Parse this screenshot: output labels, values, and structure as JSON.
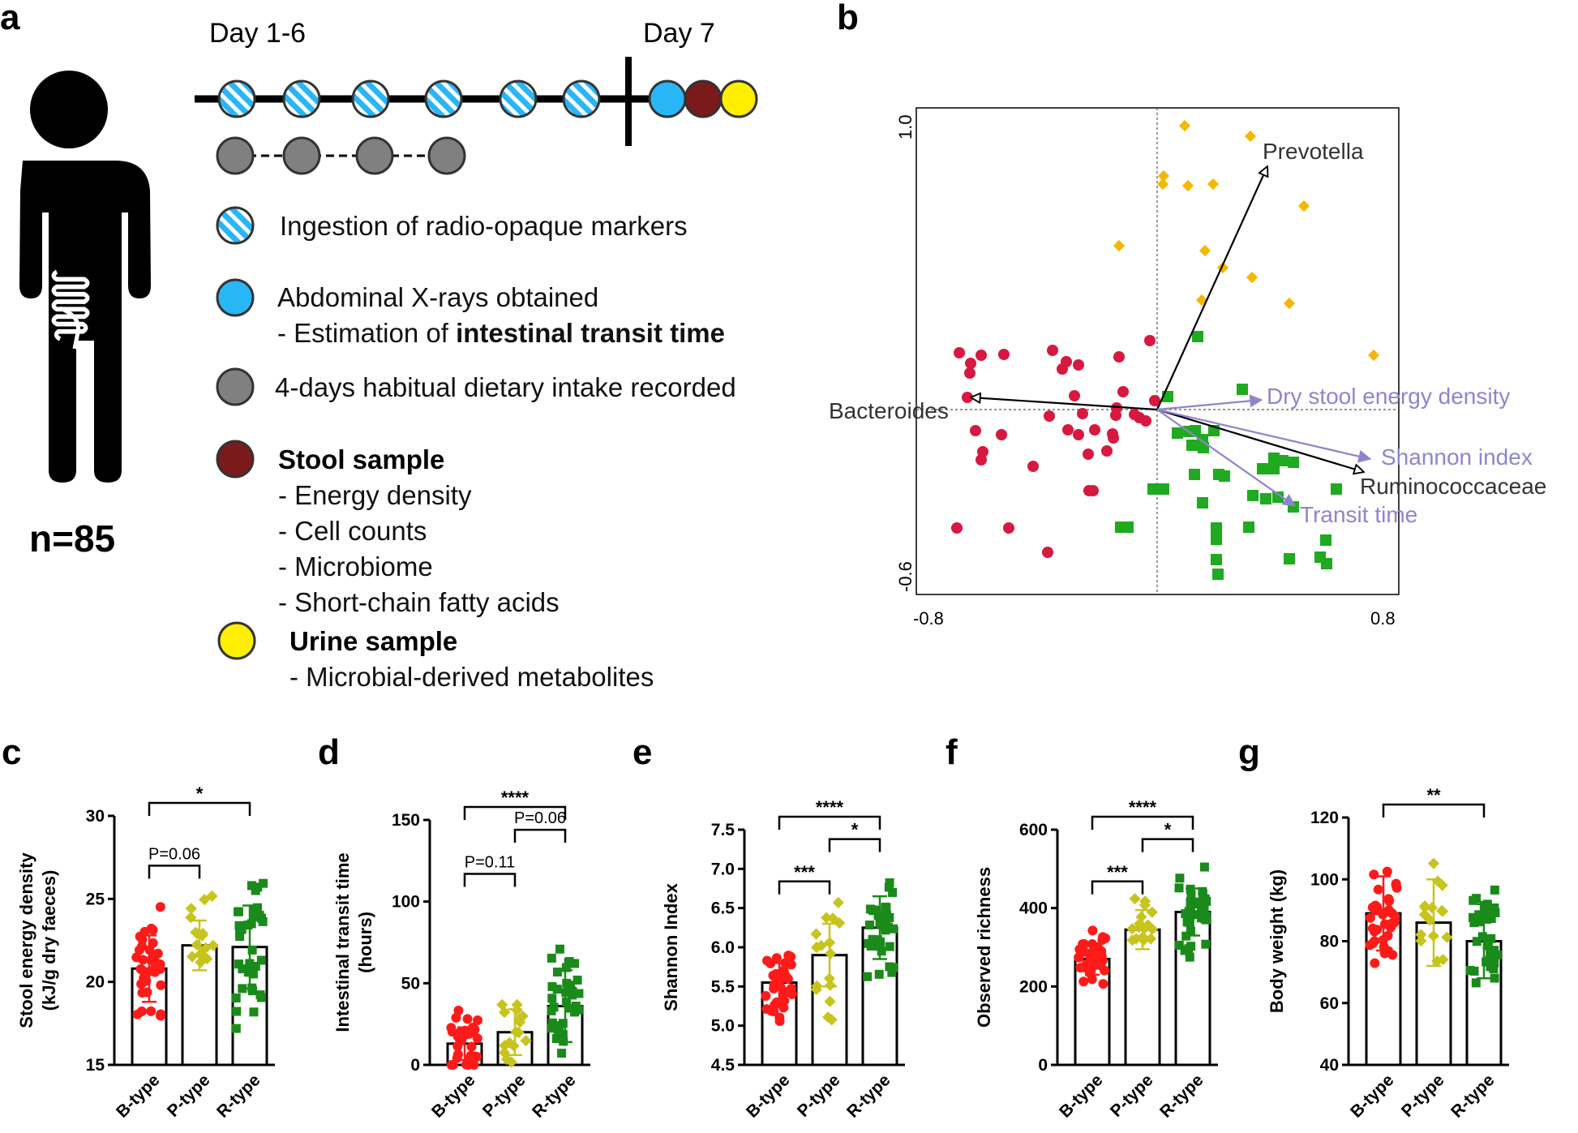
{
  "panel_a": {
    "label": "a",
    "day16": "Day 1-6",
    "day7": "Day 7",
    "n": "n=85",
    "legend": [
      {
        "marker": "hatched-blue",
        "text": "Ingestion of radio-opaque markers"
      },
      {
        "marker": "blue",
        "line1": "Abdominal X-rays obtained",
        "line2_prefix": "- Estimation of ",
        "line2_bold": "intestinal transit time"
      },
      {
        "marker": "gray",
        "text": "4-days habitual dietary intake recorded"
      },
      {
        "marker": "maroon",
        "title": "Stool sample",
        "items": [
          "- Energy density",
          "- Cell counts",
          "- Microbiome",
          "- Short-chain fatty acids"
        ]
      },
      {
        "marker": "yellow",
        "title": "Urine sample",
        "items": [
          "- Microbial-derived metabolites"
        ]
      }
    ],
    "colors": {
      "blue": "#29b6f6",
      "maroon": "#7b1a1a",
      "yellow": "#ffee00",
      "gray": "#808080"
    }
  },
  "panel_b": {
    "label": "b",
    "xticks": [
      "-0.8",
      "0.8"
    ],
    "yticks": [
      "1.0",
      "-0.6"
    ],
    "arrow_labels": {
      "prevotella": "Prevotella",
      "bacteroides": "Bacteroides",
      "ruminococcaceae": "Ruminococcaceae",
      "dry_stool": "Dry stool energy density",
      "shannon": "Shannon index",
      "transit": "Transit time"
    },
    "colors": {
      "b_type": "#d7193f",
      "p_type": "#f5b800",
      "r_type": "#1faa1f",
      "env_arrow": "#8c86cc",
      "taxa_arrow": "#000000"
    }
  },
  "bar_panels": [
    {
      "label": "c",
      "ylabel1": "Stool energy density",
      "ylabel2": "(kJ/g dry faeces)",
      "ymin": 15,
      "ymax": 30,
      "ticks": [
        "15",
        "20",
        "25",
        "30"
      ],
      "categories": [
        "B-type",
        "P-type",
        "R-type"
      ],
      "means": [
        20.8,
        22.2,
        22.1
      ],
      "sds": [
        2.0,
        1.5,
        2.5
      ],
      "brackets": [
        {
          "from": 0,
          "to": 2,
          "level": 1,
          "text": "*"
        },
        {
          "from": 0,
          "to": 1,
          "level": 0,
          "text": "P=0.06"
        }
      ]
    },
    {
      "label": "d",
      "ylabel1": "Intestinal transit time",
      "ylabel2": "(hours)",
      "ymin": 0,
      "ymax": 150,
      "ticks": [
        "0",
        "50",
        "100",
        "150"
      ],
      "categories": [
        "B-type",
        "P-type",
        "R-type"
      ],
      "means": [
        13,
        20,
        36
      ],
      "sds": [
        10,
        14,
        22
      ],
      "brackets": [
        {
          "from": 0,
          "to": 2,
          "level": 1,
          "text": "****"
        },
        {
          "from": 0,
          "to": 1,
          "level": 0,
          "text": "P=0.11"
        },
        {
          "from": 1,
          "to": 2,
          "level": 0.5,
          "text": "P=0.06"
        }
      ]
    },
    {
      "label": "e",
      "ylabel1": "Shannon Index",
      "ylabel2": "",
      "ymin": 4.5,
      "ymax": 7.5,
      "ticks": [
        "4.5",
        "5.0",
        "5.5",
        "6.0",
        "6.5",
        "7.0",
        "7.5"
      ],
      "categories": [
        "B-type",
        "P-type",
        "R-type"
      ],
      "means": [
        5.55,
        5.9,
        6.25
      ],
      "sds": [
        0.25,
        0.4,
        0.4
      ],
      "brackets": [
        {
          "from": 0,
          "to": 2,
          "level": 1,
          "text": "****"
        },
        {
          "from": 0,
          "to": 1,
          "level": 0,
          "text": "***"
        },
        {
          "from": 1,
          "to": 2,
          "level": 0.5,
          "text": "*"
        }
      ]
    },
    {
      "label": "f",
      "ylabel1": "Observed richness",
      "ylabel2": "",
      "ymin": 0,
      "ymax": 600,
      "ticks": [
        "0",
        "200",
        "400",
        "600"
      ],
      "categories": [
        "B-type",
        "P-type",
        "R-type"
      ],
      "means": [
        270,
        345,
        390
      ],
      "sds": [
        40,
        50,
        60
      ],
      "brackets": [
        {
          "from": 0,
          "to": 2,
          "level": 1,
          "text": "****"
        },
        {
          "from": 0,
          "to": 1,
          "level": 0,
          "text": "***"
        },
        {
          "from": 1,
          "to": 2,
          "level": 0.5,
          "text": "*"
        }
      ]
    },
    {
      "label": "g",
      "ylabel1": "Body weight (kg)",
      "ylabel2": "",
      "ymin": 40,
      "ymax": 120,
      "ticks": [
        "40",
        "60",
        "80",
        "100",
        "120"
      ],
      "categories": [
        "B-type",
        "P-type",
        "R-type"
      ],
      "means": [
        89,
        86,
        80
      ],
      "sds": [
        12,
        14,
        12
      ],
      "brackets": [
        {
          "from": 0,
          "to": 2,
          "level": 1,
          "text": "**"
        }
      ]
    }
  ],
  "colors": {
    "b_type": "#ff1a1a",
    "p_type": "#c8c41e",
    "r_type": "#1a8a1a"
  }
}
